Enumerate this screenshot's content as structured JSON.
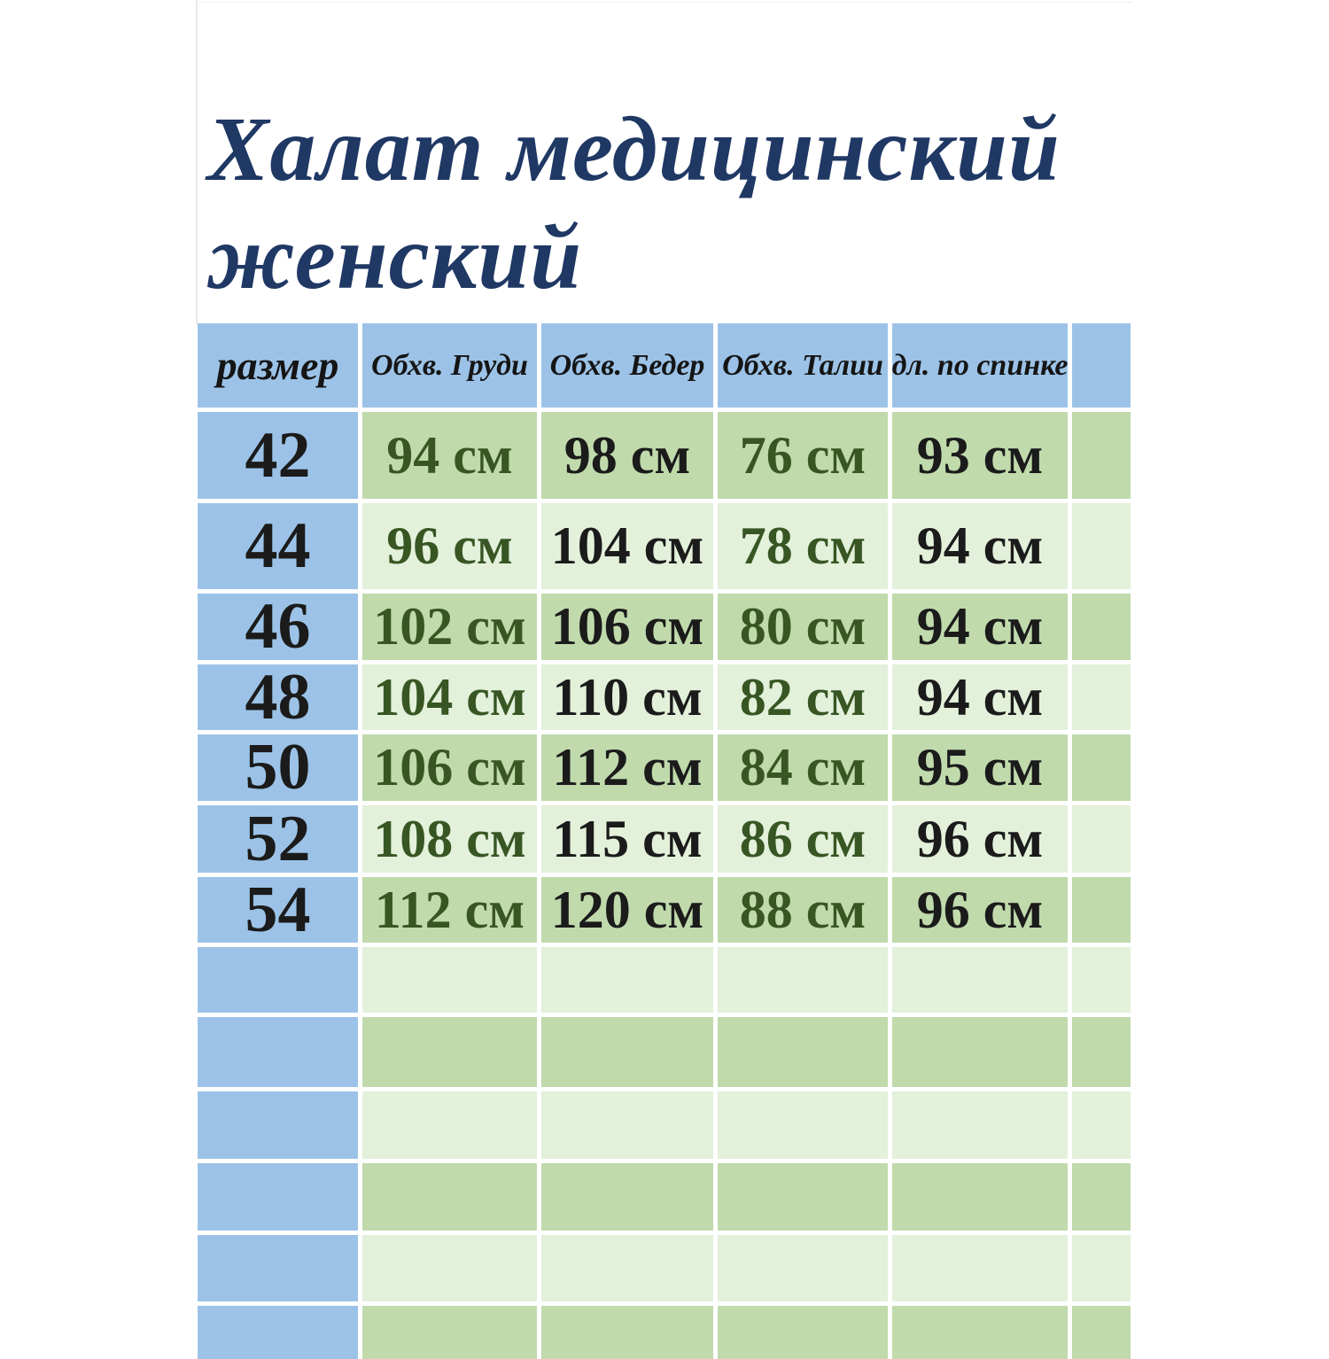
{
  "page": {
    "title_line1": "Халат медицинский",
    "title_line2": "женский"
  },
  "table": {
    "headers": [
      "размер",
      "Обхв. Груди",
      "Обхв. Бедер",
      "Обхв. Талии",
      "дл. по спинке"
    ],
    "unit": "см",
    "rows": [
      {
        "size": "42",
        "chest": "94 см",
        "hips": "98 см",
        "waist": "76 см",
        "back_length": "93 см"
      },
      {
        "size": "44",
        "chest": "96 см",
        "hips": "104 см",
        "waist": "78 см",
        "back_length": "94 см"
      },
      {
        "size": "46",
        "chest": "102 см",
        "hips": "106 см",
        "waist": "80 см",
        "back_length": "94 см"
      },
      {
        "size": "48",
        "chest": "104 см",
        "hips": "110 см",
        "waist": "82 см",
        "back_length": "94 см"
      },
      {
        "size": "50",
        "chest": "106 см",
        "hips": "112 см",
        "waist": "84 см",
        "back_length": "95 см"
      },
      {
        "size": "52",
        "chest": "108 см",
        "hips": "115 см",
        "waist": "86 см",
        "back_length": "96 см"
      },
      {
        "size": "54",
        "chest": "112 см",
        "hips": "120 см",
        "waist": "88 см",
        "back_length": "96 см"
      }
    ],
    "empty_rows": 6
  },
  "colors": {
    "title_text": "#1F3864",
    "header_column_bg": "#9CC3E7",
    "row_bg_medium_green": "#C0DAAC",
    "row_bg_light_green": "#E3F0DA",
    "value_text_green": "#375623",
    "value_text_black": "#1B1B1B",
    "gridline": "#FFFFFF"
  }
}
